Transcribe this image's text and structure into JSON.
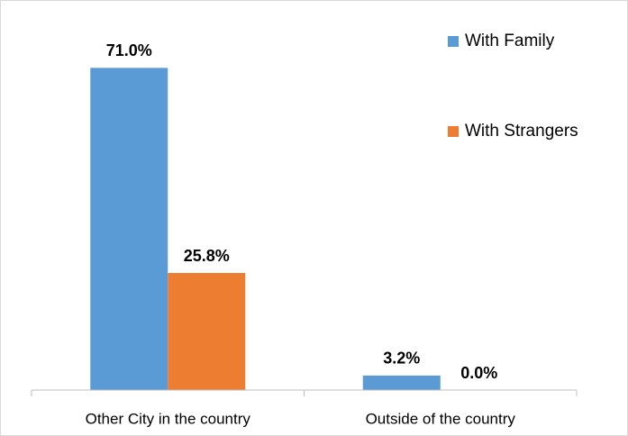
{
  "chart_data": {
    "type": "bar",
    "categories": [
      "Other City in the country",
      "Outside of the country"
    ],
    "series": [
      {
        "name": "With Family",
        "color": "#5b9bd5",
        "values": [
          71.0,
          3.2
        ],
        "value_labels": [
          "71.0%",
          "3.2%"
        ]
      },
      {
        "name": "With Strangers",
        "color": "#ed7d31",
        "values": [
          25.8,
          0.0
        ],
        "value_labels": [
          "25.8%",
          "0.0%"
        ]
      }
    ],
    "ylim": [
      0,
      80
    ],
    "legend": "upper right"
  }
}
